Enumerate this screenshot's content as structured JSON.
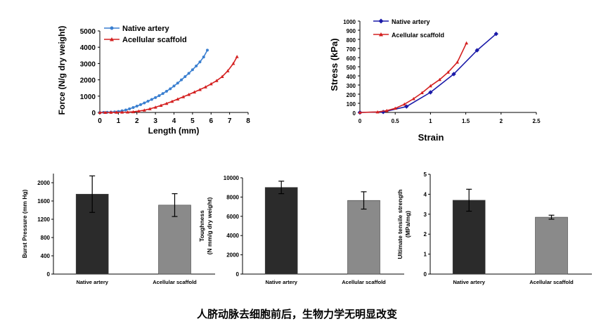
{
  "caption": "人脐动脉去细胞前后，生物力学无明显改变",
  "chart_data": [
    {
      "type": "line",
      "xlabel": "Length (mm)",
      "ylabel": "Force (N/g dry weight)",
      "xlim": [
        0,
        8
      ],
      "ylim": [
        0,
        5000
      ],
      "xticks": [
        0,
        1,
        2,
        3,
        4,
        5,
        6,
        7,
        8
      ],
      "yticks": [
        0,
        1000,
        2000,
        3000,
        4000,
        5000
      ],
      "legend_position": "top-left",
      "series": [
        {
          "name": "Native artery",
          "color": "#3a7fd0",
          "x": [
            0,
            0.2,
            0.4,
            0.6,
            0.8,
            1.0,
            1.2,
            1.4,
            1.6,
            1.8,
            2.0,
            2.2,
            2.4,
            2.6,
            2.8,
            3.0,
            3.2,
            3.4,
            3.6,
            3.8,
            4.0,
            4.2,
            4.4,
            4.6,
            4.8,
            5.0,
            5.2,
            5.4,
            5.6,
            5.8
          ],
          "y": [
            0,
            5,
            10,
            20,
            35,
            60,
            100,
            150,
            220,
            300,
            390,
            480,
            580,
            690,
            800,
            910,
            1030,
            1160,
            1300,
            1450,
            1620,
            1800,
            2000,
            2200,
            2400,
            2620,
            2850,
            3100,
            3400,
            3820
          ]
        },
        {
          "name": "Acellular scaffold",
          "color": "#d42020",
          "x": [
            0,
            0.3,
            0.6,
            0.9,
            1.2,
            1.5,
            1.8,
            2.1,
            2.4,
            2.7,
            3.0,
            3.3,
            3.6,
            3.9,
            4.2,
            4.5,
            4.8,
            5.1,
            5.4,
            5.7,
            6.0,
            6.3,
            6.6,
            6.9,
            7.2,
            7.4
          ],
          "y": [
            0,
            0,
            5,
            10,
            15,
            20,
            40,
            80,
            140,
            220,
            320,
            430,
            550,
            680,
            820,
            960,
            1100,
            1250,
            1400,
            1560,
            1750,
            1950,
            2200,
            2550,
            3000,
            3420
          ]
        }
      ]
    },
    {
      "type": "line",
      "xlabel": "Strain",
      "ylabel": "Stress  (kPa)",
      "xlim": [
        0,
        2.5
      ],
      "ylim": [
        0,
        1000
      ],
      "xticks": [
        0,
        0.5,
        1,
        1.5,
        2,
        2.5
      ],
      "yticks": [
        0,
        100,
        200,
        300,
        400,
        500,
        600,
        700,
        800,
        900,
        1000
      ],
      "legend_position": "top-left",
      "series": [
        {
          "name": "Native artery",
          "color": "#1a1aa8",
          "x": [
            0,
            0.33,
            0.66,
            1.0,
            1.33,
            1.66,
            1.93
          ],
          "y": [
            0,
            5,
            65,
            220,
            420,
            680,
            860
          ]
        },
        {
          "name": "Acellular scaffold",
          "color": "#d42020",
          "x": [
            0,
            0.25,
            0.38,
            0.5,
            0.63,
            0.76,
            0.88,
            1.0,
            1.13,
            1.25,
            1.38,
            1.51
          ],
          "y": [
            0,
            5,
            20,
            45,
            90,
            150,
            215,
            290,
            360,
            440,
            550,
            760
          ]
        }
      ]
    },
    {
      "type": "bar",
      "categories": [
        "Native artery",
        "Acellular scaffold"
      ],
      "values": [
        1750,
        1510
      ],
      "errors": [
        400,
        250
      ],
      "colors": [
        "#2b2b2b",
        "#8a8a8a"
      ],
      "ylabel": "Burst Pressure (mm Hg)",
      "ylim": [
        0,
        2200
      ],
      "yticks": [
        0,
        400,
        800,
        1200,
        1600,
        2000
      ]
    },
    {
      "type": "bar",
      "categories": [
        "Native artery",
        "Acellular scaffold"
      ],
      "values": [
        9000,
        7650
      ],
      "errors": [
        650,
        900
      ],
      "colors": [
        "#2b2b2b",
        "#8a8a8a"
      ],
      "ylabel": "Toughness",
      "ylabel2": "(N mm/g dry weight)",
      "ylim": [
        0,
        10000
      ],
      "yticks": [
        0,
        2000,
        4000,
        6000,
        8000,
        10000
      ]
    },
    {
      "type": "bar",
      "categories": [
        "Native artery",
        "Acellular scaffold"
      ],
      "values": [
        3.7,
        2.85
      ],
      "errors": [
        0.55,
        0.1
      ],
      "colors": [
        "#2b2b2b",
        "#8a8a8a"
      ],
      "ylabel": "Ultimate tensile strength",
      "ylabel2": "(MPa/mg)",
      "ylim": [
        0,
        5
      ],
      "yticks": [
        0,
        1,
        2,
        3,
        4,
        5
      ]
    }
  ]
}
